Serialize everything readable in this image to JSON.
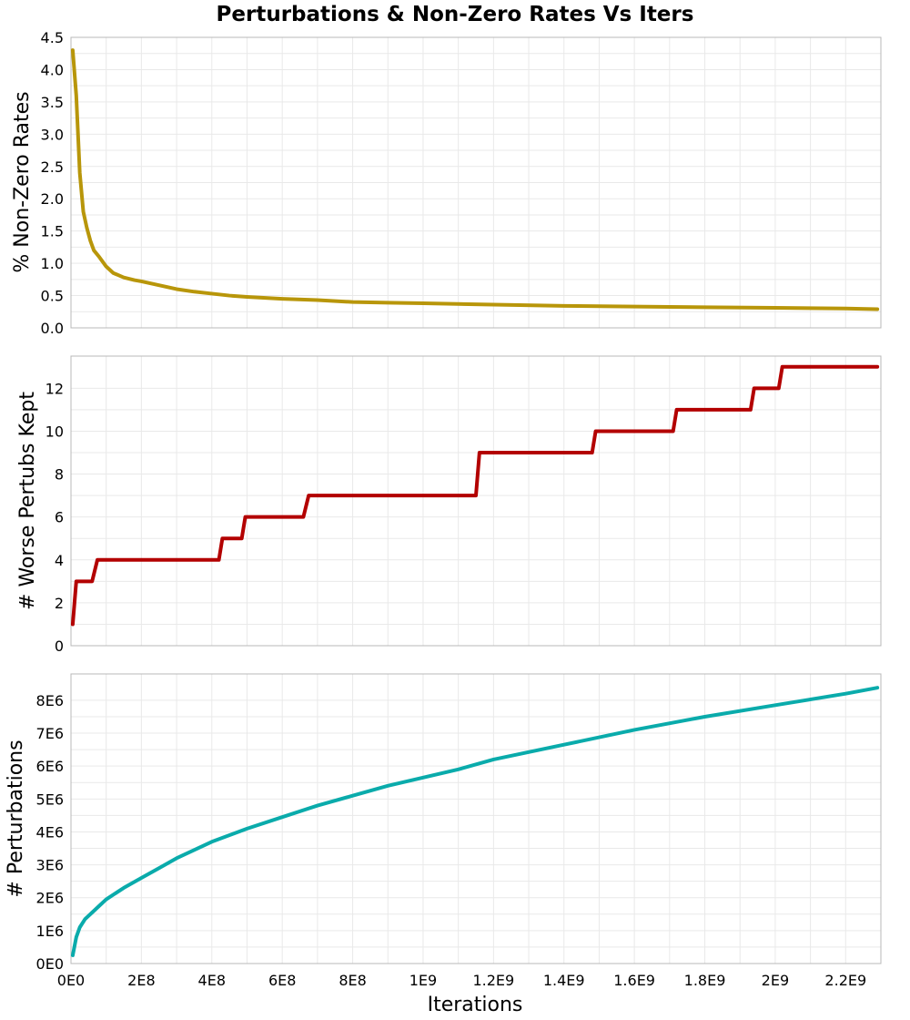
{
  "chart_data": {
    "type": "line",
    "title": "Perturbations & Non-Zero Rates Vs Iters",
    "xlabel": "Iterations",
    "xlim": [
      0,
      2300000000
    ],
    "x_ticks": [
      {
        "value": 0,
        "label": "0E0"
      },
      {
        "value": 200000000,
        "label": "2E8"
      },
      {
        "value": 400000000,
        "label": "4E8"
      },
      {
        "value": 600000000,
        "label": "6E8"
      },
      {
        "value": 800000000,
        "label": "8E8"
      },
      {
        "value": 1000000000,
        "label": "1E9"
      },
      {
        "value": 1200000000,
        "label": "1.2E9"
      },
      {
        "value": 1400000000,
        "label": "1.4E9"
      },
      {
        "value": 1600000000,
        "label": "1.6E9"
      },
      {
        "value": 1800000000,
        "label": "1.8E9"
      },
      {
        "value": 2000000000,
        "label": "2E9"
      },
      {
        "value": 2200000000,
        "label": "2.2E9"
      }
    ],
    "grid": true,
    "panels": [
      {
        "id": "nonzero",
        "ylabel": "% Non-Zero Rates",
        "ylim": [
          0,
          4.5
        ],
        "y_ticks": [
          {
            "value": 0,
            "label": "0.0"
          },
          {
            "value": 0.5,
            "label": "0.5"
          },
          {
            "value": 1.0,
            "label": "1.0"
          },
          {
            "value": 1.5,
            "label": "1.5"
          },
          {
            "value": 2.0,
            "label": "2.0"
          },
          {
            "value": 2.5,
            "label": "2.5"
          },
          {
            "value": 3.0,
            "label": "3.0"
          },
          {
            "value": 3.5,
            "label": "3.5"
          },
          {
            "value": 4.0,
            "label": "4.0"
          },
          {
            "value": 4.5,
            "label": "4.5"
          }
        ],
        "color": "#b8960a",
        "x": [
          5000000,
          15000000,
          25000000,
          35000000,
          45000000,
          55000000,
          65000000,
          80000000,
          100000000,
          120000000,
          150000000,
          180000000,
          200000000,
          250000000,
          300000000,
          350000000,
          400000000,
          450000000,
          500000000,
          600000000,
          700000000,
          800000000,
          900000000,
          1000000000,
          1200000000,
          1400000000,
          1600000000,
          1800000000,
          2000000000,
          2200000000,
          2290000000
        ],
        "y": [
          4.3,
          3.6,
          2.4,
          1.8,
          1.55,
          1.35,
          1.2,
          1.1,
          0.95,
          0.85,
          0.78,
          0.74,
          0.72,
          0.66,
          0.6,
          0.56,
          0.53,
          0.5,
          0.48,
          0.45,
          0.43,
          0.4,
          0.39,
          0.38,
          0.36,
          0.34,
          0.33,
          0.32,
          0.31,
          0.3,
          0.29
        ]
      },
      {
        "id": "worse",
        "ylabel": "# Worse Pertubs Kept",
        "ylim": [
          0,
          13.5
        ],
        "y_ticks": [
          {
            "value": 0,
            "label": "0"
          },
          {
            "value": 2,
            "label": "2"
          },
          {
            "value": 4,
            "label": "4"
          },
          {
            "value": 6,
            "label": "6"
          },
          {
            "value": 8,
            "label": "8"
          },
          {
            "value": 10,
            "label": "10"
          },
          {
            "value": 12,
            "label": "12"
          }
        ],
        "color": "#b30000",
        "x": [
          5000000,
          15000000,
          60000000,
          75000000,
          420000000,
          430000000,
          485000000,
          495000000,
          660000000,
          675000000,
          1150000000,
          1160000000,
          1480000000,
          1490000000,
          1710000000,
          1720000000,
          1930000000,
          1940000000,
          2010000000,
          2020000000,
          2290000000
        ],
        "y": [
          1,
          3,
          3,
          4,
          4,
          5,
          5,
          6,
          6,
          7,
          7,
          9,
          9,
          10,
          10,
          11,
          11,
          12,
          12,
          13,
          13
        ]
      },
      {
        "id": "perturbations",
        "ylabel": "# Perturbations",
        "ylim": [
          0,
          8800000
        ],
        "y_ticks": [
          {
            "value": 0,
            "label": "0E0"
          },
          {
            "value": 1000000,
            "label": "1E6"
          },
          {
            "value": 2000000,
            "label": "2E6"
          },
          {
            "value": 3000000,
            "label": "3E6"
          },
          {
            "value": 4000000,
            "label": "4E6"
          },
          {
            "value": 5000000,
            "label": "5E6"
          },
          {
            "value": 6000000,
            "label": "6E6"
          },
          {
            "value": 7000000,
            "label": "7E6"
          },
          {
            "value": 8000000,
            "label": "8E6"
          }
        ],
        "color": "#0aabab",
        "x": [
          5000000,
          15000000,
          25000000,
          40000000,
          60000000,
          80000000,
          100000000,
          150000000,
          200000000,
          250000000,
          300000000,
          400000000,
          500000000,
          600000000,
          700000000,
          800000000,
          900000000,
          1000000000,
          1100000000,
          1200000000,
          1400000000,
          1600000000,
          1800000000,
          2000000000,
          2200000000,
          2290000000
        ],
        "y": [
          250000,
          800000,
          1100000,
          1350000,
          1550000,
          1750000,
          1950000,
          2300000,
          2600000,
          2900000,
          3200000,
          3700000,
          4100000,
          4450000,
          4800000,
          5100000,
          5400000,
          5650000,
          5900000,
          6200000,
          6650000,
          7100000,
          7500000,
          7850000,
          8200000,
          8380000
        ]
      }
    ]
  }
}
